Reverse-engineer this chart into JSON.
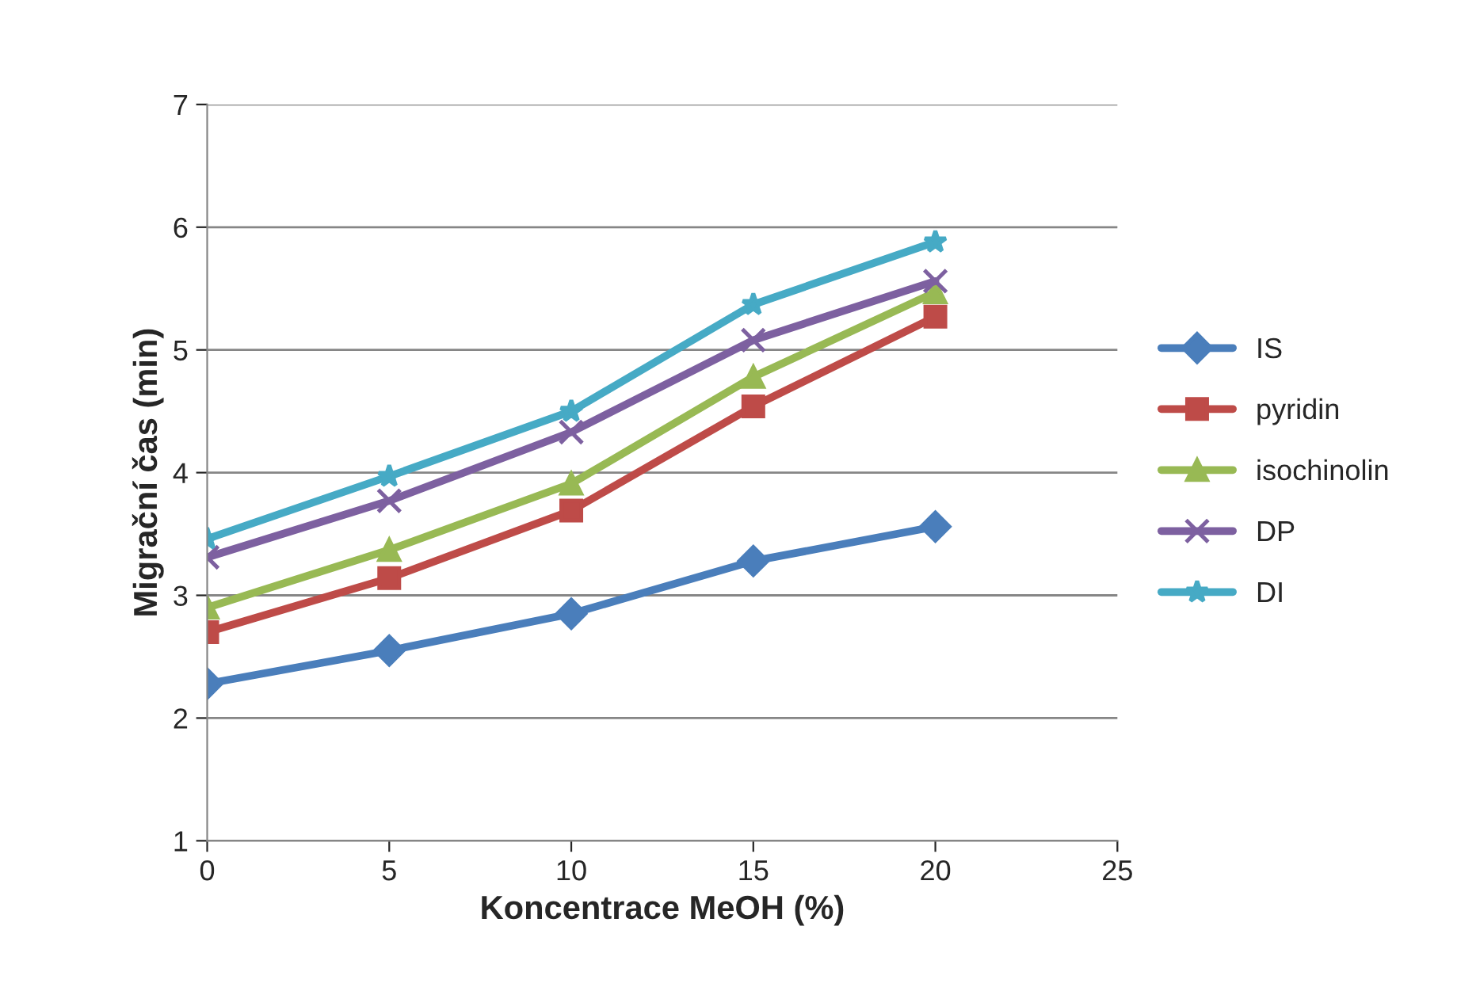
{
  "chart_data": {
    "type": "line",
    "xlabel": "Koncentrace MeOH (%)",
    "ylabel": "Migrační čas (min)",
    "x": [
      0,
      5,
      10,
      15,
      20
    ],
    "series": [
      {
        "name": "IS",
        "color": "#4a7ebb",
        "marker": "diamond",
        "values": [
          2.28,
          2.55,
          2.85,
          3.28,
          3.56
        ]
      },
      {
        "name": "pyridin",
        "color": "#be4b48",
        "marker": "square",
        "values": [
          2.7,
          3.14,
          3.69,
          4.54,
          5.27
        ]
      },
      {
        "name": "isochinolin",
        "color": "#98b954",
        "marker": "triangle",
        "values": [
          2.9,
          3.37,
          3.91,
          4.78,
          5.47
        ]
      },
      {
        "name": "DP",
        "color": "#7d60a0",
        "marker": "cross",
        "values": [
          3.31,
          3.77,
          4.33,
          5.08,
          5.56
        ]
      },
      {
        "name": "DI",
        "color": "#46aac5",
        "marker": "star",
        "values": [
          3.46,
          3.97,
          4.5,
          5.37,
          5.88
        ]
      }
    ],
    "xlim": [
      0,
      25
    ],
    "xticks": [
      0,
      5,
      10,
      15,
      20,
      25
    ],
    "ylim": [
      1,
      7
    ],
    "yticks": [
      1,
      2,
      3,
      4,
      5,
      6,
      7
    ],
    "grid": "y",
    "legend": "right",
    "line_style": "solid"
  }
}
